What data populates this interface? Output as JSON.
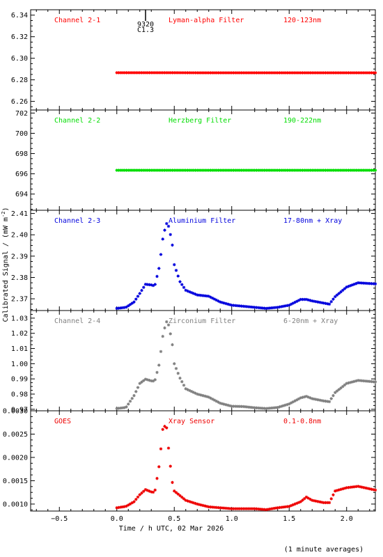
{
  "figure": {
    "ylabel": "Calibrated Signal / (mW m",
    "ylabel_sup": "-2",
    "ylabel_close": ")",
    "xlabel": "Time / h UTC, 02 Mar 2026",
    "footnote": "(1 minute averages)",
    "xlim": [
      -0.75,
      2.25
    ],
    "xticks": [
      -0.5,
      0.0,
      0.5,
      1.0,
      1.5,
      2.0
    ],
    "xtick_labels": [
      "−0.5",
      "0.0",
      "0.5",
      "1.0",
      "1.5",
      "2.0"
    ],
    "flare_marker": {
      "x": 0.25,
      "label_top": "9320",
      "label_bottom": "C1.3"
    }
  },
  "chart_data": [
    {
      "type": "scatter",
      "panel_label": "Channel 2-1",
      "filter": "Lyman-alpha Filter",
      "band": "120-123nm",
      "color": "#ff0000",
      "ylim": [
        6.252,
        6.345
      ],
      "yticks": [
        6.26,
        6.28,
        6.3,
        6.32,
        6.34
      ],
      "ytick_labels": [
        "6.26",
        "6.28",
        "6.30",
        "6.32",
        "6.34"
      ],
      "x": [
        0.0,
        0.25,
        0.5,
        0.75,
        1.0,
        1.25,
        1.5,
        1.75,
        2.0,
        2.25
      ],
      "y": [
        6.2866,
        6.2866,
        6.2866,
        6.2865,
        6.2865,
        6.2865,
        6.2865,
        6.2865,
        6.2865,
        6.2865
      ],
      "dense": true
    },
    {
      "type": "scatter",
      "panel_label": "Channel 2-2",
      "filter": "Herzberg Filter",
      "band": "190-222nm",
      "color": "#00dd00",
      "ylim": [
        692.4,
        702.3
      ],
      "yticks": [
        694,
        696,
        698,
        700,
        702
      ],
      "ytick_labels": [
        "694",
        "696",
        "698",
        "700",
        "702"
      ],
      "x": [
        0.0,
        0.25,
        0.5,
        0.75,
        1.0,
        1.25,
        1.5,
        1.75,
        2.0,
        2.25
      ],
      "y": [
        696.35,
        696.35,
        696.35,
        696.35,
        696.35,
        696.35,
        696.35,
        696.35,
        696.35,
        696.35
      ],
      "dense": true
    },
    {
      "type": "scatter",
      "panel_label": "Channel 2-3",
      "filter": "Aluminium Filter",
      "band": "17-80nm + Xray",
      "color": "#0000dd",
      "ylim": [
        2.3645,
        2.4115
      ],
      "yticks": [
        2.37,
        2.38,
        2.39,
        2.4,
        2.41
      ],
      "ytick_labels": [
        "2.37",
        "2.38",
        "2.39",
        "2.40",
        "2.41"
      ],
      "x": [
        0.0,
        0.08,
        0.15,
        0.2,
        0.25,
        0.3,
        0.33,
        0.37,
        0.4,
        0.43,
        0.45,
        0.48,
        0.5,
        0.55,
        0.6,
        0.7,
        0.8,
        0.9,
        1.0,
        1.1,
        1.2,
        1.3,
        1.4,
        1.5,
        1.6,
        1.65,
        1.7,
        1.8,
        1.85,
        1.9,
        2.0,
        2.1,
        2.25
      ],
      "y": [
        2.3655,
        2.366,
        2.3685,
        2.3725,
        2.3768,
        2.3765,
        2.376,
        2.385,
        2.398,
        2.4055,
        2.404,
        2.397,
        2.386,
        2.378,
        2.374,
        2.3718,
        2.3712,
        2.3685,
        2.367,
        2.3665,
        2.366,
        2.3655,
        2.366,
        2.367,
        2.3697,
        2.3697,
        2.369,
        2.368,
        2.3675,
        2.371,
        2.3755,
        2.3775,
        2.377
      ],
      "dense": false
    },
    {
      "type": "scatter",
      "panel_label": "Channel 2-4",
      "filter": "Zirconium Filter",
      "band": "6-20nm + Xray",
      "color": "#808080",
      "ylim": [
        0.969,
        1.035
      ],
      "yticks": [
        0.97,
        0.98,
        0.99,
        1.0,
        1.01,
        1.02,
        1.03
      ],
      "ytick_labels": [
        "0.97",
        "0.98",
        "0.99",
        "1.00",
        "1.01",
        "1.02",
        "1.03"
      ],
      "x": [
        0.0,
        0.08,
        0.15,
        0.2,
        0.25,
        0.3,
        0.33,
        0.37,
        0.4,
        0.43,
        0.45,
        0.48,
        0.5,
        0.55,
        0.6,
        0.7,
        0.8,
        0.9,
        1.0,
        1.1,
        1.2,
        1.3,
        1.4,
        1.5,
        1.6,
        1.65,
        1.7,
        1.8,
        1.85,
        1.9,
        2.0,
        2.1,
        2.25
      ],
      "y": [
        0.9705,
        0.9712,
        0.979,
        0.987,
        0.9898,
        0.9887,
        0.9885,
        1.0,
        1.018,
        1.028,
        1.0255,
        1.015,
        1.0,
        0.9905,
        0.9835,
        0.98,
        0.978,
        0.974,
        0.972,
        0.9718,
        0.971,
        0.9705,
        0.9712,
        0.9735,
        0.9775,
        0.9785,
        0.977,
        0.9755,
        0.975,
        0.981,
        0.987,
        0.989,
        0.988
      ],
      "dense": false
    },
    {
      "type": "scatter",
      "panel_label": "GOES",
      "filter": "Xray Sensor",
      "band": "0.1-0.8nm",
      "color": "#ee0000",
      "ylim": [
        0.00085,
        0.003
      ],
      "yticks": [
        0.001,
        0.0015,
        0.002,
        0.0025,
        0.003
      ],
      "ytick_labels": [
        "0.0010",
        "0.0015",
        "0.0020",
        "0.0025",
        "0.0030"
      ],
      "x": [
        0.0,
        0.08,
        0.15,
        0.2,
        0.25,
        0.3,
        0.33,
        0.37,
        0.4,
        0.43,
        0.45,
        0.48,
        0.5,
        0.55,
        0.6,
        0.7,
        0.8,
        0.9,
        1.0,
        1.1,
        1.2,
        1.3,
        1.4,
        1.5,
        1.6,
        1.65,
        1.7,
        1.8,
        1.85,
        1.9,
        2.0,
        2.1,
        2.25
      ],
      "y": [
        0.00092,
        0.00095,
        0.00105,
        0.0012,
        0.00131,
        0.00126,
        0.00125,
        0.00185,
        0.0026,
        0.00272,
        0.0022,
        0.0015,
        0.00128,
        0.00118,
        0.00108,
        0.001,
        0.00094,
        0.00092,
        0.0009,
        0.0009,
        0.0009,
        0.00088,
        0.00092,
        0.00095,
        0.00105,
        0.00115,
        0.00108,
        0.00103,
        0.00103,
        0.00128,
        0.00135,
        0.00138,
        0.0013
      ],
      "dense": false
    }
  ]
}
